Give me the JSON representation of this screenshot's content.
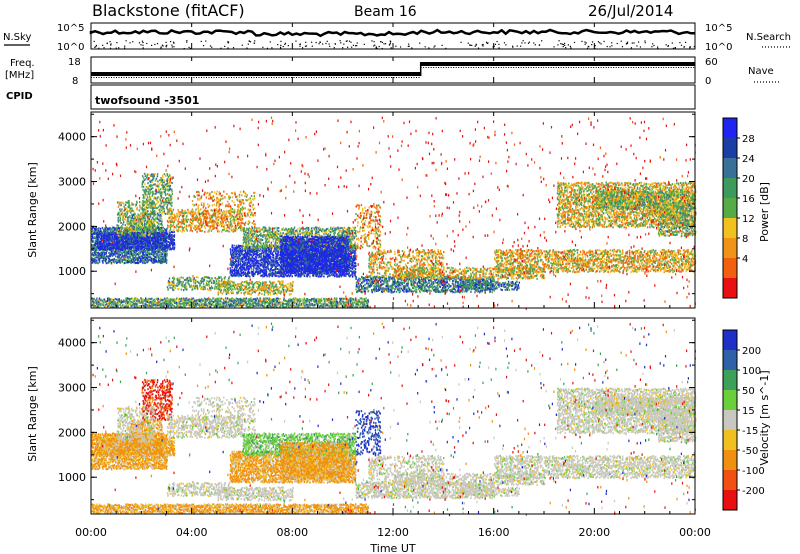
{
  "header": {
    "station": "Blackstone (fitACF)",
    "beam": "Beam 16",
    "date": "26/Jul/2014"
  },
  "panels": {
    "nsky_label": "N.Sky",
    "nsearch_label": "N.Search",
    "freq_label_line1": "Freq.",
    "freq_label_line2": "[MHz]",
    "nave_label": "Nave",
    "cpid_label": "CPID",
    "cpid_value": "twofsound -3501",
    "noise_ticks": [
      "10^5",
      "10^0"
    ],
    "freq_ticks": [
      "18",
      "8"
    ],
    "nave_ticks": [
      "60",
      "0"
    ]
  },
  "chart_data": [
    {
      "type": "heatmap",
      "name": "power",
      "ylabel": "Slant Range [km]",
      "yticks": [
        1000,
        2000,
        3000,
        4000
      ],
      "ylim": [
        180,
        4550
      ],
      "colorbar_label": "Power [dB]",
      "colorbar_ticks": [
        4,
        8,
        12,
        16,
        20,
        24,
        28
      ],
      "colorbar_colors": [
        "#1f24f0",
        "#1b3ea6",
        "#3a6f98",
        "#3b9a5c",
        "#57ab47",
        "#f0c11f",
        "#f09419",
        "#f0600f",
        "#e81010"
      ]
    },
    {
      "type": "heatmap",
      "name": "velocity",
      "ylabel": "Slant Range [km]",
      "yticks": [
        1000,
        2000,
        3000,
        4000
      ],
      "ylim": [
        180,
        4550
      ],
      "colorbar_label": "Velocity [m s^-1]",
      "colorbar_ticks": [
        200,
        100,
        50,
        15,
        -15,
        -50,
        -100,
        -200
      ],
      "colorbar_colors": [
        "#1e30c8",
        "#3060a8",
        "#3aa05a",
        "#6acf3a",
        "#c8c8c0",
        "#f0c020",
        "#f09010",
        "#f05010",
        "#e81010"
      ],
      "xlabel": "Time UT",
      "xticks": [
        "00:00",
        "04:00",
        "08:00",
        "12:00",
        "16:00",
        "20:00",
        "00:00"
      ],
      "xlim_hours": [
        0,
        24
      ]
    }
  ]
}
